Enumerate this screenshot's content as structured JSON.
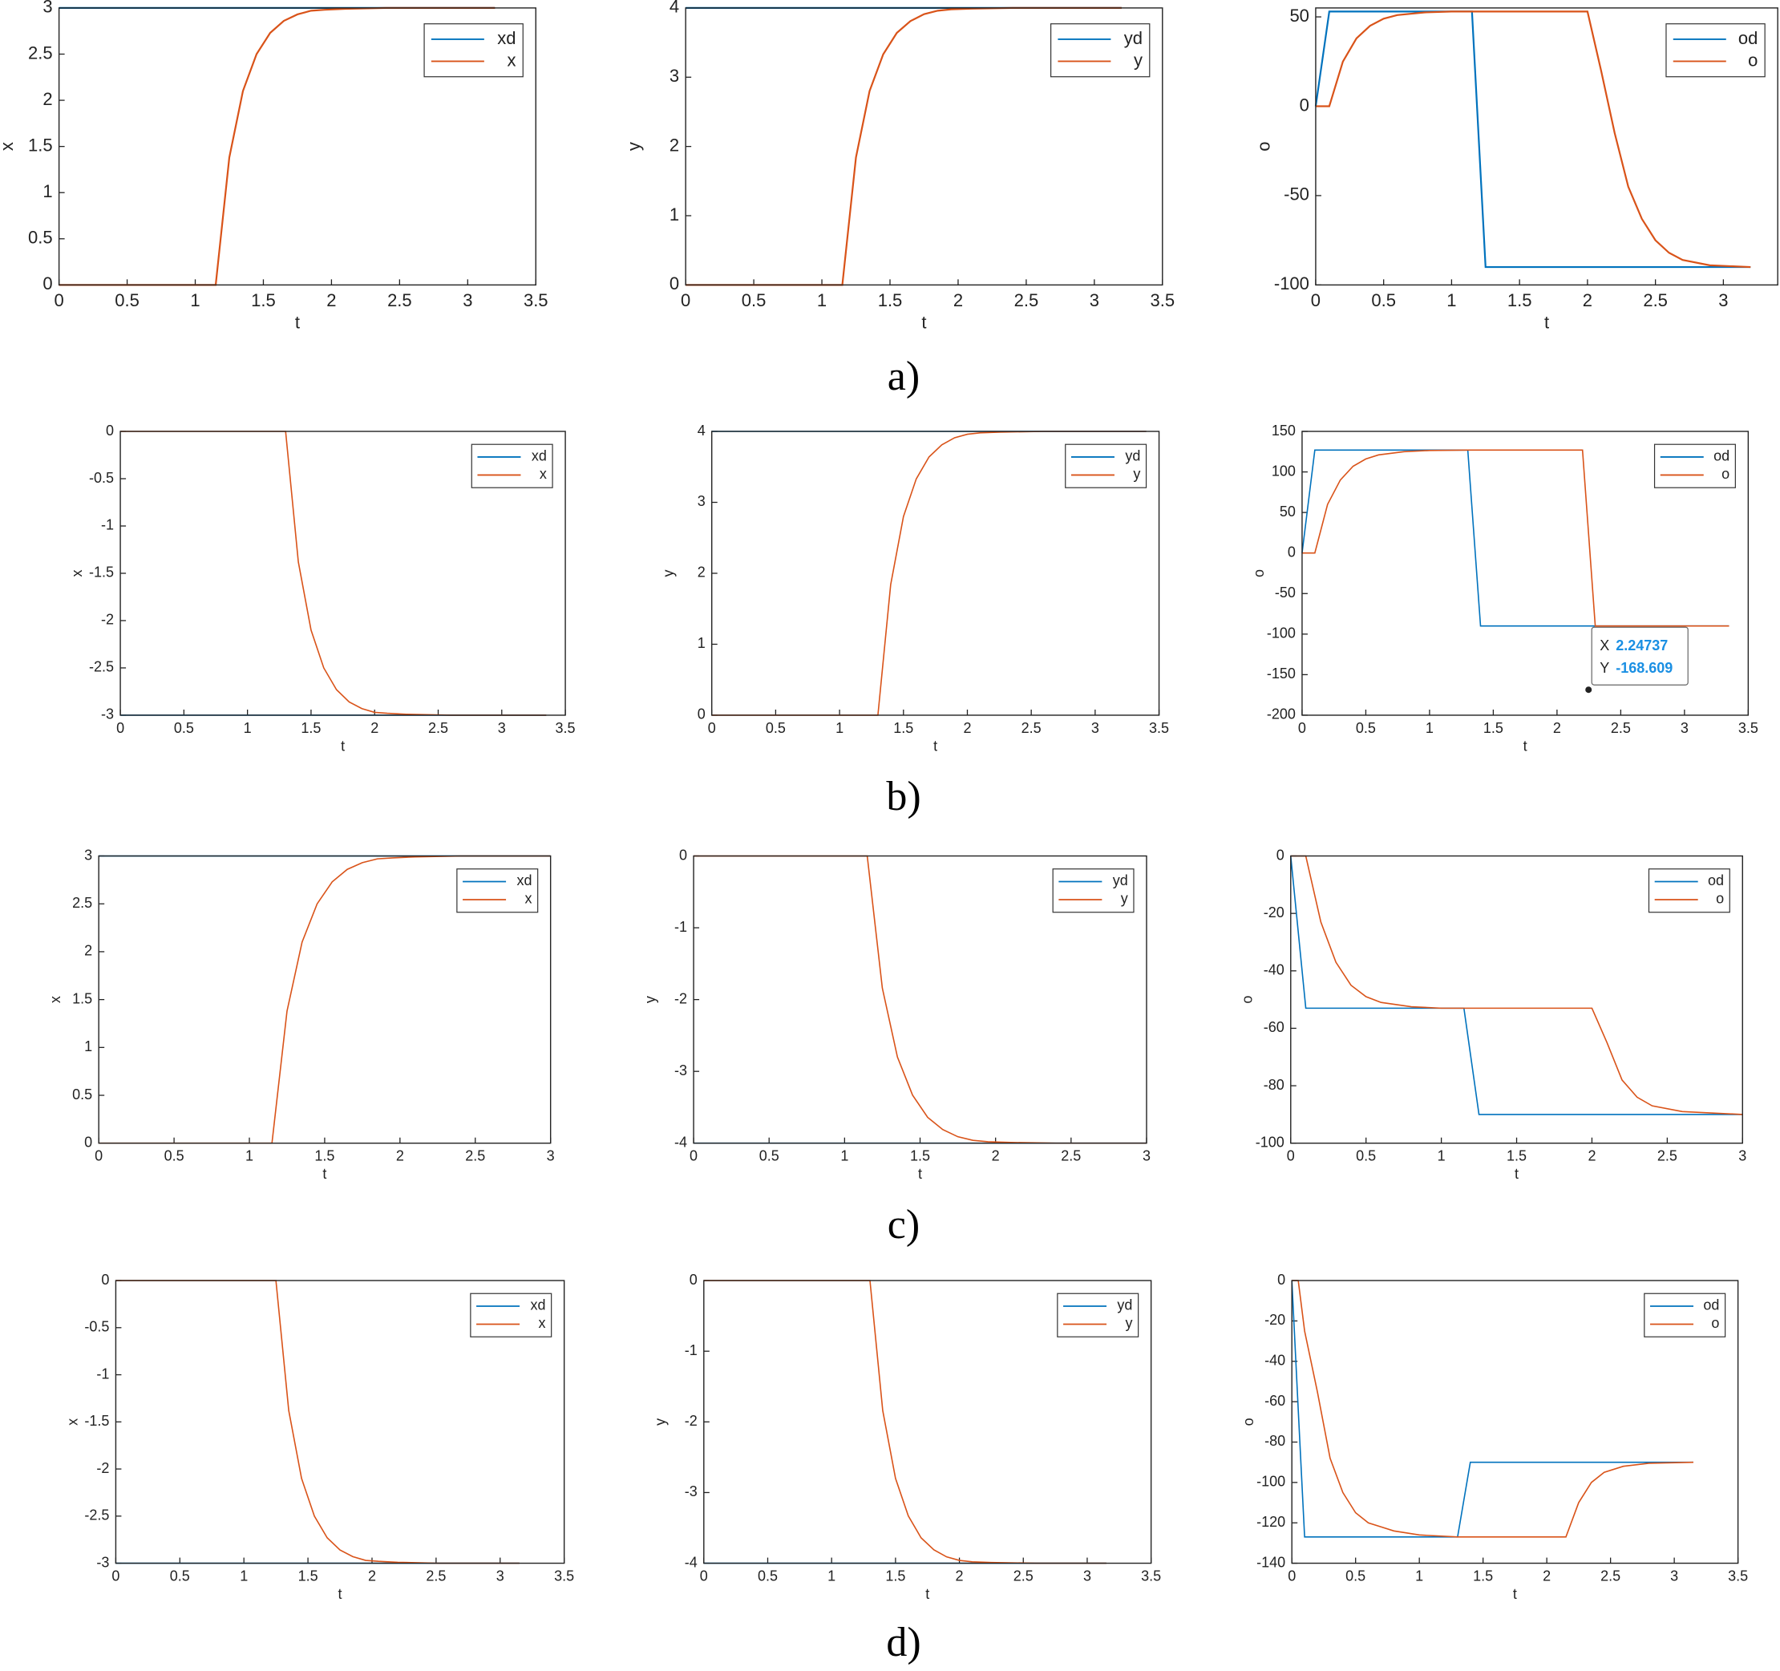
{
  "chart_data": [
    {
      "type": "line",
      "xlabel": "t",
      "ylabel": "x",
      "xlim": [
        0,
        3.5
      ],
      "ylim": [
        0,
        3
      ],
      "xticks": [
        0,
        0.5,
        1,
        1.5,
        2,
        2.5,
        3,
        3.5
      ],
      "yticks": [
        0,
        0.5,
        1,
        1.5,
        2,
        2.5,
        3
      ],
      "legend": "upper right",
      "x": [
        0,
        1.15,
        1.25,
        1.35,
        1.45,
        1.55,
        1.65,
        1.75,
        1.85,
        1.95,
        2.1,
        2.4,
        3.2
      ],
      "series": [
        {
          "name": "xd",
          "color": "#0072bd",
          "values": [
            3,
            3,
            3,
            3,
            3,
            3,
            3,
            3,
            3,
            3,
            3,
            3,
            3
          ]
        },
        {
          "name": "x",
          "color": "#d95319",
          "values": [
            0,
            0,
            1.38,
            2.1,
            2.5,
            2.73,
            2.86,
            2.93,
            2.97,
            2.98,
            2.99,
            3,
            3
          ]
        }
      ]
    },
    {
      "type": "line",
      "xlabel": "t",
      "ylabel": "y",
      "xlim": [
        0,
        3.5
      ],
      "ylim": [
        0,
        4
      ],
      "xticks": [
        0,
        0.5,
        1,
        1.5,
        2,
        2.5,
        3,
        3.5
      ],
      "yticks": [
        0,
        1,
        2,
        3,
        4
      ],
      "legend": "upper right",
      "x": [
        0,
        1.15,
        1.25,
        1.35,
        1.45,
        1.55,
        1.65,
        1.75,
        1.85,
        1.95,
        2.1,
        2.4,
        3.2
      ],
      "series": [
        {
          "name": "yd",
          "color": "#0072bd",
          "values": [
            4,
            4,
            4,
            4,
            4,
            4,
            4,
            4,
            4,
            4,
            4,
            4,
            4
          ]
        },
        {
          "name": "y",
          "color": "#d95319",
          "values": [
            0,
            0,
            1.84,
            2.8,
            3.33,
            3.64,
            3.81,
            3.91,
            3.96,
            3.98,
            3.99,
            4,
            4
          ]
        }
      ]
    },
    {
      "type": "line",
      "xlabel": "t",
      "ylabel": "o",
      "xlim": [
        0,
        3.4
      ],
      "ylim": [
        -100,
        55
      ],
      "xticks": [
        0,
        0.5,
        1,
        1.5,
        2,
        2.5,
        3
      ],
      "yticks": [
        -100,
        -50,
        0,
        50
      ],
      "legend": "upper right",
      "x": [
        0,
        0.1,
        0.2,
        0.3,
        0.4,
        0.5,
        0.6,
        0.8,
        1.0,
        1.15,
        1.25,
        1.5,
        2.0,
        2.1,
        2.2,
        2.3,
        2.4,
        2.5,
        2.6,
        2.7,
        2.9,
        3.2
      ],
      "series": [
        {
          "name": "od",
          "color": "#0072bd",
          "values": [
            0,
            53,
            53,
            53,
            53,
            53,
            53,
            53,
            53,
            53,
            -90,
            -90,
            -90,
            -90,
            -90,
            -90,
            -90,
            -90,
            -90,
            -90,
            -90,
            -90
          ]
        },
        {
          "name": "o",
          "color": "#d95319",
          "values": [
            0,
            0,
            25,
            38,
            45,
            49,
            51,
            52.5,
            53,
            53,
            53,
            53,
            53,
            20,
            -15,
            -45,
            -63,
            -75,
            -82,
            -86,
            -89,
            -90
          ]
        }
      ]
    },
    {
      "type": "line",
      "xlabel": "t",
      "ylabel": "x",
      "xlim": [
        0,
        3.5
      ],
      "ylim": [
        -3,
        0
      ],
      "xticks": [
        0,
        0.5,
        1,
        1.5,
        2,
        2.5,
        3,
        3.5
      ],
      "yticks": [
        -3,
        -2.5,
        -2,
        -1.5,
        -1,
        -0.5,
        0
      ],
      "legend": "upper right",
      "x": [
        0,
        1.3,
        1.4,
        1.5,
        1.6,
        1.7,
        1.8,
        1.9,
        2.0,
        2.1,
        2.25,
        2.6,
        3.35
      ],
      "series": [
        {
          "name": "xd",
          "color": "#0072bd",
          "values": [
            -3,
            -3,
            -3,
            -3,
            -3,
            -3,
            -3,
            -3,
            -3,
            -3,
            -3,
            -3,
            -3
          ]
        },
        {
          "name": "x",
          "color": "#d95319",
          "values": [
            0,
            0,
            -1.38,
            -2.1,
            -2.5,
            -2.73,
            -2.86,
            -2.93,
            -2.97,
            -2.98,
            -2.99,
            -3,
            -3
          ]
        }
      ]
    },
    {
      "type": "line",
      "xlabel": "t",
      "ylabel": "y",
      "xlim": [
        0,
        3.5
      ],
      "ylim": [
        0,
        4
      ],
      "xticks": [
        0,
        0.5,
        1,
        1.5,
        2,
        2.5,
        3,
        3.5
      ],
      "yticks": [
        0,
        1,
        2,
        3,
        4
      ],
      "legend": "upper right",
      "x": [
        0,
        1.3,
        1.4,
        1.5,
        1.6,
        1.7,
        1.8,
        1.9,
        2.0,
        2.1,
        2.25,
        2.6,
        3.4
      ],
      "series": [
        {
          "name": "yd",
          "color": "#0072bd",
          "values": [
            4,
            4,
            4,
            4,
            4,
            4,
            4,
            4,
            4,
            4,
            4,
            4,
            4
          ]
        },
        {
          "name": "y",
          "color": "#d95319",
          "values": [
            0,
            0,
            1.84,
            2.8,
            3.33,
            3.64,
            3.81,
            3.91,
            3.96,
            3.98,
            3.99,
            4,
            4
          ]
        }
      ]
    },
    {
      "type": "line",
      "xlabel": "t",
      "ylabel": "o",
      "xlim": [
        0,
        3.5
      ],
      "ylim": [
        -200,
        150
      ],
      "xticks": [
        0,
        0.5,
        1,
        1.5,
        2,
        2.5,
        3,
        3.5
      ],
      "yticks": [
        -200,
        -150,
        -100,
        -50,
        0,
        50,
        100,
        150
      ],
      "legend": "upper right",
      "x": [
        0,
        0.1,
        0.2,
        0.3,
        0.4,
        0.5,
        0.6,
        0.8,
        1.0,
        1.3,
        1.4,
        2.2,
        2.3,
        3.35
      ],
      "series": [
        {
          "name": "od",
          "color": "#0072bd",
          "values": [
            0,
            127,
            127,
            127,
            127,
            127,
            127,
            127,
            127,
            127,
            -90,
            -90,
            -90,
            -90
          ]
        },
        {
          "name": "o",
          "color": "#d95319",
          "values": [
            0,
            0,
            60,
            90,
            107,
            116,
            121,
            125,
            126.5,
            127,
            127,
            127,
            -90,
            -90
          ]
        }
      ],
      "datatip": {
        "x_label": "X",
        "y_label": "Y",
        "x": 2.24737,
        "y": -168.609
      }
    },
    {
      "type": "line",
      "xlabel": "t",
      "ylabel": "x",
      "xlim": [
        0,
        3
      ],
      "ylim": [
        0,
        3
      ],
      "xticks": [
        0,
        0.5,
        1,
        1.5,
        2,
        2.5,
        3
      ],
      "yticks": [
        0,
        0.5,
        1,
        1.5,
        2,
        2.5,
        3
      ],
      "legend": "upper right",
      "x": [
        0,
        1.15,
        1.25,
        1.35,
        1.45,
        1.55,
        1.65,
        1.75,
        1.85,
        1.95,
        2.1,
        2.4,
        3.0
      ],
      "series": [
        {
          "name": "xd",
          "color": "#0072bd",
          "values": [
            3,
            3,
            3,
            3,
            3,
            3,
            3,
            3,
            3,
            3,
            3,
            3,
            3
          ]
        },
        {
          "name": "x",
          "color": "#d95319",
          "values": [
            0,
            0,
            1.38,
            2.1,
            2.5,
            2.73,
            2.86,
            2.93,
            2.97,
            2.98,
            2.99,
            3,
            3
          ]
        }
      ]
    },
    {
      "type": "line",
      "xlabel": "t",
      "ylabel": "y",
      "xlim": [
        0,
        3
      ],
      "ylim": [
        -4,
        0
      ],
      "xticks": [
        0,
        0.5,
        1,
        1.5,
        2,
        2.5,
        3
      ],
      "yticks": [
        -4,
        -3,
        -2,
        -1,
        0
      ],
      "legend": "upper right",
      "x": [
        0,
        1.15,
        1.25,
        1.35,
        1.45,
        1.55,
        1.65,
        1.75,
        1.85,
        1.95,
        2.1,
        2.4,
        3.0
      ],
      "series": [
        {
          "name": "yd",
          "color": "#0072bd",
          "values": [
            -4,
            -4,
            -4,
            -4,
            -4,
            -4,
            -4,
            -4,
            -4,
            -4,
            -4,
            -4,
            -4
          ]
        },
        {
          "name": "y",
          "color": "#d95319",
          "values": [
            0,
            0,
            -1.84,
            -2.8,
            -3.33,
            -3.64,
            -3.81,
            -3.91,
            -3.96,
            -3.98,
            -3.99,
            -4,
            -4
          ]
        }
      ]
    },
    {
      "type": "line",
      "xlabel": "t",
      "ylabel": "o",
      "xlim": [
        0,
        3
      ],
      "ylim": [
        -100,
        0
      ],
      "xticks": [
        0,
        0.5,
        1,
        1.5,
        2,
        2.5,
        3
      ],
      "yticks": [
        -100,
        -80,
        -60,
        -40,
        -20,
        0
      ],
      "legend": "upper right",
      "x": [
        0,
        0.1,
        0.2,
        0.3,
        0.4,
        0.5,
        0.6,
        0.8,
        1.0,
        1.15,
        1.25,
        2.0,
        2.1,
        2.2,
        2.3,
        2.4,
        2.6,
        3.0
      ],
      "series": [
        {
          "name": "od",
          "color": "#0072bd",
          "values": [
            0,
            -53,
            -53,
            -53,
            -53,
            -53,
            -53,
            -53,
            -53,
            -53,
            -90,
            -90,
            -90,
            -90,
            -90,
            -90,
            -90,
            -90
          ]
        },
        {
          "name": "o",
          "color": "#d95319",
          "values": [
            0,
            0,
            -23,
            -37,
            -45,
            -49,
            -51,
            -52.5,
            -53,
            -53,
            -53,
            -53,
            -65,
            -78,
            -84,
            -87,
            -89,
            -90
          ]
        }
      ]
    },
    {
      "type": "line",
      "xlabel": "t",
      "ylabel": "x",
      "xlim": [
        0,
        3.5
      ],
      "ylim": [
        -3,
        0
      ],
      "xticks": [
        0,
        0.5,
        1,
        1.5,
        2,
        2.5,
        3,
        3.5
      ],
      "yticks": [
        -3,
        -2.5,
        -2,
        -1.5,
        -1,
        -0.5,
        0
      ],
      "legend": "upper right",
      "x": [
        0,
        1.25,
        1.35,
        1.45,
        1.55,
        1.65,
        1.75,
        1.85,
        1.95,
        2.05,
        2.2,
        2.5,
        3.15
      ],
      "series": [
        {
          "name": "xd",
          "color": "#0072bd",
          "values": [
            -3,
            -3,
            -3,
            -3,
            -3,
            -3,
            -3,
            -3,
            -3,
            -3,
            -3,
            -3,
            -3
          ]
        },
        {
          "name": "x",
          "color": "#d95319",
          "values": [
            0,
            0,
            -1.38,
            -2.1,
            -2.5,
            -2.73,
            -2.86,
            -2.93,
            -2.97,
            -2.98,
            -2.99,
            -3,
            -3
          ]
        }
      ]
    },
    {
      "type": "line",
      "xlabel": "t",
      "ylabel": "y",
      "xlim": [
        0,
        3.5
      ],
      "ylim": [
        -4,
        0
      ],
      "xticks": [
        0,
        0.5,
        1,
        1.5,
        2,
        2.5,
        3,
        3.5
      ],
      "yticks": [
        -4,
        -3,
        -2,
        -1,
        0
      ],
      "legend": "upper right",
      "x": [
        0,
        1.3,
        1.4,
        1.5,
        1.6,
        1.7,
        1.8,
        1.9,
        2.0,
        2.1,
        2.25,
        2.6,
        3.15
      ],
      "series": [
        {
          "name": "yd",
          "color": "#0072bd",
          "values": [
            -4,
            -4,
            -4,
            -4,
            -4,
            -4,
            -4,
            -4,
            -4,
            -4,
            -4,
            -4,
            -4
          ]
        },
        {
          "name": "y",
          "color": "#d95319",
          "values": [
            0,
            0,
            -1.84,
            -2.8,
            -3.33,
            -3.64,
            -3.81,
            -3.91,
            -3.96,
            -3.98,
            -3.99,
            -4,
            -4
          ]
        }
      ]
    },
    {
      "type": "line",
      "xlabel": "t",
      "ylabel": "o",
      "xlim": [
        0,
        3.5
      ],
      "ylim": [
        -140,
        0
      ],
      "xticks": [
        0,
        0.5,
        1,
        1.5,
        2,
        2.5,
        3,
        3.5
      ],
      "yticks": [
        -140,
        -120,
        -100,
        -80,
        -60,
        -40,
        -20,
        0
      ],
      "legend": "upper right",
      "x": [
        0,
        0.05,
        0.1,
        0.2,
        0.3,
        0.4,
        0.5,
        0.6,
        0.8,
        1.0,
        1.3,
        1.4,
        2.15,
        2.25,
        2.35,
        2.45,
        2.6,
        2.8,
        3.15
      ],
      "series": [
        {
          "name": "od",
          "color": "#0072bd",
          "values": [
            0,
            -64,
            -127,
            -127,
            -127,
            -127,
            -127,
            -127,
            -127,
            -127,
            -127,
            -90,
            -90,
            -90,
            -90,
            -90,
            -90,
            -90,
            -90
          ]
        },
        {
          "name": "o",
          "color": "#d95319",
          "values": [
            0,
            0,
            -25,
            -55,
            -88,
            -105,
            -115,
            -120,
            -124,
            -126,
            -127,
            -127,
            -127,
            -110,
            -100,
            -95,
            -92,
            -90.5,
            -90
          ]
        }
      ]
    }
  ],
  "panel_labels": [
    "a)",
    "b)",
    "c)",
    "d)"
  ]
}
